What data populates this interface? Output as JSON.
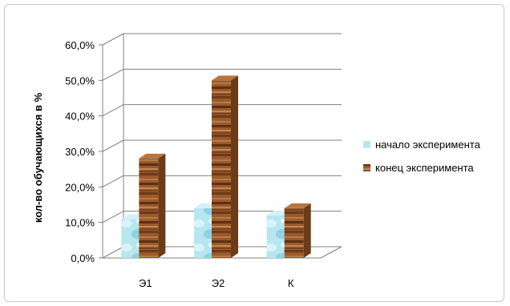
{
  "chart_data": {
    "type": "bar",
    "ylabel": "кол-во обучающихся в %",
    "xlabel": "",
    "categories": [
      "Э1",
      "Э2",
      "К"
    ],
    "series": [
      {
        "name": "начало эксперимента",
        "values": [
          11.0,
          14.0,
          12.0
        ],
        "color": "#a9dde8"
      },
      {
        "name": "конец эксперимента",
        "values": [
          28.0,
          50.0,
          14.0
        ],
        "color": "#9b5a2c"
      }
    ],
    "ylim": [
      0,
      60
    ],
    "yticks": [
      "0,0%",
      "10,0%",
      "20,0%",
      "30,0%",
      "40,0%",
      "50,0%",
      "60,0%"
    ],
    "grid": true,
    "legend": "right"
  }
}
